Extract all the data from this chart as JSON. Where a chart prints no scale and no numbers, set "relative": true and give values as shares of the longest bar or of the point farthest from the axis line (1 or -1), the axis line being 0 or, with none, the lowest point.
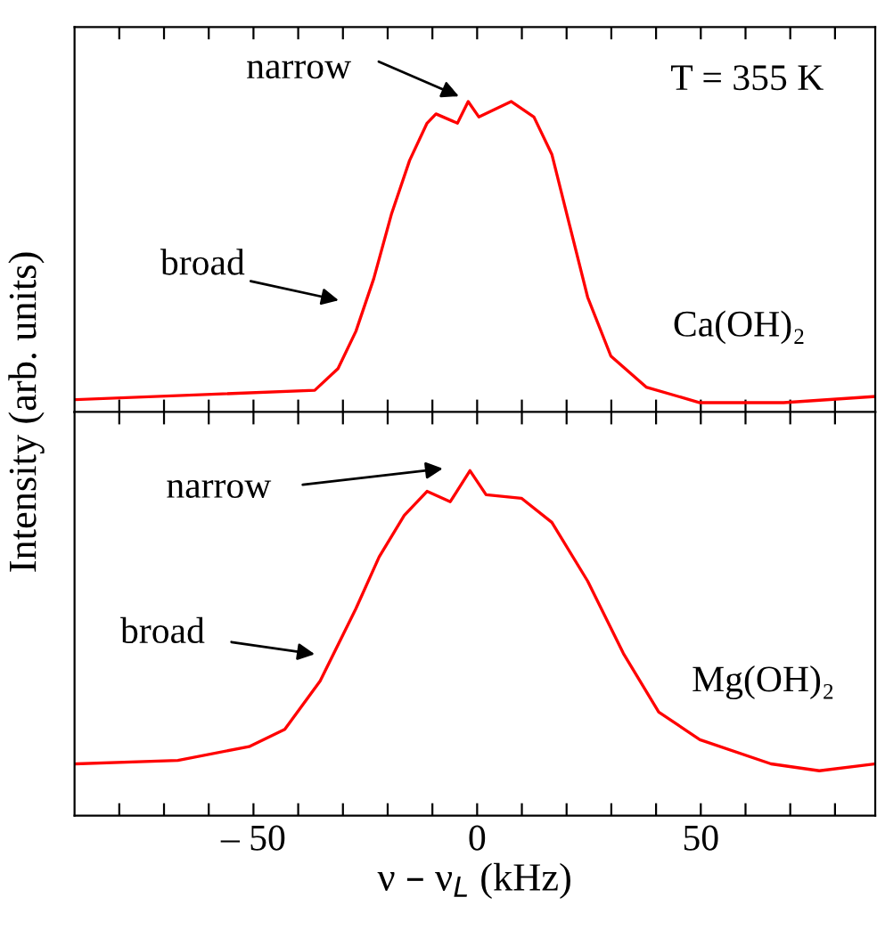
{
  "chart_data": [
    {
      "type": "line",
      "relative": true,
      "ylabel": "Intensity (arb. units)",
      "xlim": [
        -90,
        89
      ],
      "tick_labels": false,
      "xticks": [
        {
          "value": -80,
          "label": null
        },
        {
          "value": -70,
          "label": null
        },
        {
          "value": -60,
          "label": null
        },
        {
          "value": -50,
          "label": null
        },
        {
          "value": -40,
          "label": null
        },
        {
          "value": -30,
          "label": null
        },
        {
          "value": -20,
          "label": null
        },
        {
          "value": -10,
          "label": null
        },
        {
          "value": 0,
          "label": null
        },
        {
          "value": 10,
          "label": null
        },
        {
          "value": 20,
          "label": null
        },
        {
          "value": 30,
          "label": null
        },
        {
          "value": 40,
          "label": null
        },
        {
          "value": 50,
          "label": null
        },
        {
          "value": 60,
          "label": null
        },
        {
          "value": 70,
          "label": null
        },
        {
          "value": 80,
          "label": null
        }
      ],
      "series": [
        {
          "color": "#ff0000",
          "x": [
            -89.6,
            -36.3,
            -31.1,
            -27.1,
            -23.1,
            -19.1,
            -15.1,
            -11.2,
            -9.2,
            -4.4,
            -2.0,
            0.4,
            7.6,
            12.7,
            16.7,
            20.7,
            24.7,
            29.9,
            37.8,
            49.8,
            68.5,
            89.0
          ],
          "values": [
            0.04,
            0.07,
            0.14,
            0.26,
            0.43,
            0.64,
            0.81,
            0.93,
            0.96,
            0.93,
            1.0,
            0.95,
            1.0,
            0.95,
            0.83,
            0.6,
            0.37,
            0.18,
            0.08,
            0.03,
            0.03,
            0.05
          ]
        }
      ],
      "annotations": [
        "narrow",
        "broad",
        "T = 355 K",
        "Ca(OH)₂"
      ]
    },
    {
      "type": "line",
      "relative": true,
      "xlabel": "ν – ν$_{L}$ (kHz)",
      "xlim": [
        -90,
        89
      ],
      "tick_labels": "x",
      "xticks": [
        {
          "value": -80,
          "label": null
        },
        {
          "value": -70,
          "label": null
        },
        {
          "value": -60,
          "label": null
        },
        {
          "value": -50,
          "label": "– 50"
        },
        {
          "value": -40,
          "label": null
        },
        {
          "value": -30,
          "label": null
        },
        {
          "value": -20,
          "label": null
        },
        {
          "value": -10,
          "label": null
        },
        0,
        {
          "value": 10,
          "label": null
        },
        {
          "value": 20,
          "label": null
        },
        {
          "value": 30,
          "label": null
        },
        {
          "value": 40,
          "label": null
        },
        50,
        {
          "value": 60,
          "label": null
        },
        {
          "value": 70,
          "label": null
        },
        {
          "value": 80,
          "label": null
        }
      ],
      "series": [
        {
          "color": "#ff0000",
          "x": [
            -89.6,
            -66.9,
            -51.0,
            -43.0,
            -35.1,
            -27.1,
            -21.9,
            -16.3,
            -11.2,
            -6.0,
            -1.6,
            2.0,
            9.9,
            16.7,
            24.7,
            32.7,
            40.6,
            49.8,
            65.7,
            76.5,
            89.0
          ],
          "values": [
            0.15,
            0.16,
            0.2,
            0.25,
            0.39,
            0.6,
            0.75,
            0.87,
            0.94,
            0.91,
            1.0,
            0.93,
            0.92,
            0.85,
            0.68,
            0.47,
            0.3,
            0.22,
            0.15,
            0.13,
            0.15
          ]
        }
      ],
      "annotations": [
        "narrow",
        "broad",
        "Mg(OH)₂"
      ]
    }
  ]
}
